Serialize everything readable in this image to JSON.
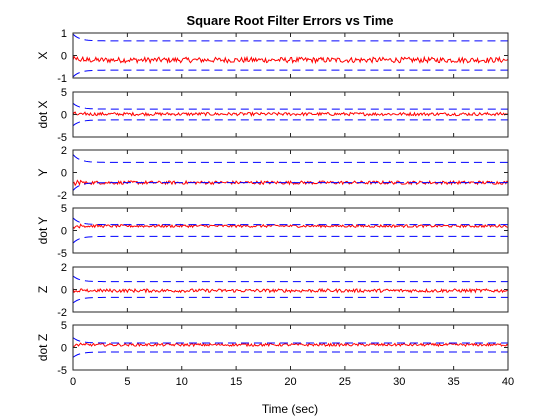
{
  "chart_data": {
    "type": "line",
    "title": "Square Root Filter Errors vs Time",
    "xlabel": "Time (sec)",
    "xlim": [
      0,
      40
    ],
    "xticks": [
      0,
      5,
      10,
      15,
      20,
      25,
      30,
      35,
      40
    ],
    "colors": {
      "error": "#ff0000",
      "bound": "#0000ff",
      "axes": "#262626"
    },
    "grid": false,
    "subplots": [
      {
        "ylabel": "X",
        "ylim": [
          -1,
          1
        ],
        "yticks": [
          -1,
          0,
          1
        ],
        "yticks_labels": [
          "-1",
          "0",
          "1"
        ],
        "bound_start": 0.95,
        "bound_steady": 0.65,
        "error_center": -0.2,
        "error_noise": 0.12
      },
      {
        "ylabel": "dot X",
        "ylim": [
          -5,
          5
        ],
        "yticks": [
          -5,
          0,
          5
        ],
        "yticks_labels": [
          "-5",
          "0",
          "5"
        ],
        "bound_start": 2.5,
        "bound_steady": 1.2,
        "error_center": 0.1,
        "error_noise": 0.35
      },
      {
        "ylabel": "Y",
        "ylim": [
          -2,
          2
        ],
        "yticks": [
          -2,
          0,
          2
        ],
        "yticks_labels": [
          "-2",
          "0",
          "2"
        ],
        "bound_start": 1.6,
        "bound_steady": 0.9,
        "error_center": -0.9,
        "error_noise": 0.15
      },
      {
        "ylabel": "dot Y",
        "ylim": [
          -5,
          5
        ],
        "yticks": [
          -5,
          0,
          5
        ],
        "yticks_labels": [
          "-5",
          "0",
          "5"
        ],
        "bound_start": 2.8,
        "bound_steady": 1.3,
        "error_center": 1.0,
        "error_noise": 0.3
      },
      {
        "ylabel": "Z",
        "ylim": [
          -2,
          2
        ],
        "yticks": [
          -2,
          0,
          2
        ],
        "yticks_labels": [
          "-2",
          "0",
          "2"
        ],
        "bound_start": 1.2,
        "bound_steady": 0.7,
        "error_center": -0.1,
        "error_noise": 0.15
      },
      {
        "ylabel": "dot Z",
        "ylim": [
          -5,
          5
        ],
        "yticks": [
          -5,
          0,
          5
        ],
        "yticks_labels": [
          "-5",
          "0",
          "5"
        ],
        "bound_start": 2.2,
        "bound_steady": 1.0,
        "error_center": 0.6,
        "error_noise": 0.3
      }
    ]
  }
}
